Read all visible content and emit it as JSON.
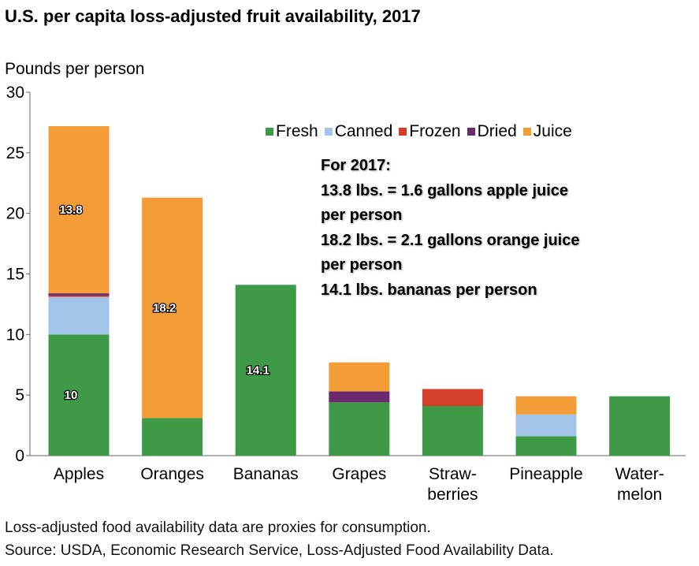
{
  "title": "U.S. per capita loss-adjusted fruit availability, 2017",
  "ylabel": "Pounds per person",
  "footer": [
    "Loss-adjusted food availability data are proxies for consumption.",
    "Source: USDA, Economic Research Service, Loss-Adjusted Food Availability Data."
  ],
  "annotation": [
    "For 2017:",
    "13.8 lbs. = 1.6 gallons apple juice",
    "per person",
    "18.2 lbs. = 2.1 gallons orange juice",
    "per person",
    "14.1 lbs. bananas per person"
  ],
  "colors": {
    "Fresh": "#3e9a47",
    "Canned": "#a2c4e8",
    "Frozen": "#d33f2b",
    "Dried": "#6b2a6b",
    "Juice": "#f39c38"
  },
  "chart_data": {
    "type": "bar",
    "stacked": true,
    "categories": [
      [
        "Apples"
      ],
      [
        "Oranges"
      ],
      [
        "Bananas"
      ],
      [
        "Grapes"
      ],
      [
        "Straw-",
        "berries"
      ],
      [
        "Pineapple"
      ],
      [
        "Water-",
        "melon"
      ]
    ],
    "series": [
      {
        "name": "Fresh",
        "values": [
          10.0,
          3.1,
          14.1,
          4.4,
          4.1,
          1.6,
          4.9
        ]
      },
      {
        "name": "Canned",
        "values": [
          3.1,
          0,
          0,
          0,
          0,
          1.8,
          0
        ]
      },
      {
        "name": "Frozen",
        "values": [
          0.1,
          0,
          0,
          0,
          1.4,
          0,
          0
        ]
      },
      {
        "name": "Dried",
        "values": [
          0.2,
          0,
          0,
          0.9,
          0,
          0,
          0
        ]
      },
      {
        "name": "Juice",
        "values": [
          13.8,
          18.2,
          0,
          2.4,
          0,
          1.5,
          0
        ]
      }
    ],
    "data_labels": [
      {
        "category": 0,
        "series": "Fresh",
        "text": "10"
      },
      {
        "category": 0,
        "series": "Juice",
        "text": "13.8"
      },
      {
        "category": 1,
        "series": "Juice",
        "text": "18.2"
      },
      {
        "category": 2,
        "series": "Fresh",
        "text": "14.1"
      }
    ],
    "ylim": [
      0,
      30
    ],
    "yticks": [
      0,
      5,
      10,
      15,
      20,
      25,
      30
    ],
    "grid": false,
    "legend": "top-right"
  }
}
